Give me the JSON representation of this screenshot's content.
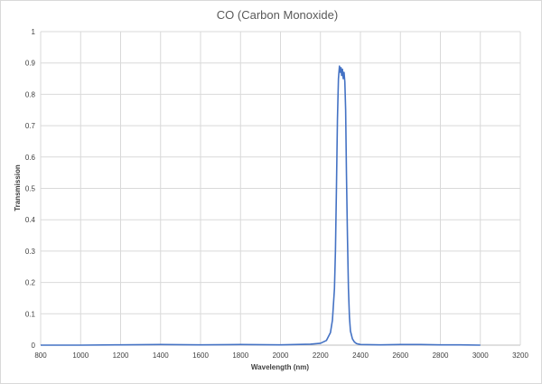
{
  "chart_data": {
    "type": "line",
    "title": "CO (Carbon Monoxide)",
    "xlabel": "Wavelength (nm)",
    "ylabel": "Transmission",
    "xlim": [
      800,
      3200
    ],
    "ylim": [
      0,
      1
    ],
    "x_ticks": [
      "800",
      "1000",
      "1200",
      "1400",
      "1600",
      "1800",
      "2000",
      "2200",
      "2400",
      "2600",
      "2800",
      "3000",
      "3200"
    ],
    "y_ticks": [
      "0",
      "0.1",
      "0.2",
      "0.3",
      "0.4",
      "0.5",
      "0.6",
      "0.7",
      "0.8",
      "0.9",
      "1"
    ],
    "grid": true,
    "legend": "none",
    "line_color": "#4472C4",
    "series": [
      {
        "x": [
          800,
          1000,
          1200,
          1400,
          1600,
          1800,
          2000,
          2150,
          2200,
          2230,
          2250,
          2260,
          2270,
          2275,
          2280,
          2285,
          2290,
          2295,
          2300,
          2303,
          2306,
          2310,
          2314,
          2318,
          2322,
          2326,
          2330,
          2335,
          2340,
          2345,
          2350,
          2360,
          2370,
          2380,
          2400,
          2500,
          2600,
          2700,
          2800,
          2900,
          3000
        ],
        "y": [
          0,
          0,
          0.001,
          0.002,
          0.001,
          0.002,
          0.001,
          0.003,
          0.006,
          0.015,
          0.04,
          0.08,
          0.18,
          0.3,
          0.5,
          0.72,
          0.85,
          0.89,
          0.87,
          0.885,
          0.86,
          0.88,
          0.85,
          0.87,
          0.84,
          0.75,
          0.55,
          0.35,
          0.18,
          0.09,
          0.045,
          0.02,
          0.01,
          0.005,
          0.002,
          0.001,
          0.002,
          0.002,
          0.001,
          0.001,
          0
        ]
      }
    ]
  }
}
